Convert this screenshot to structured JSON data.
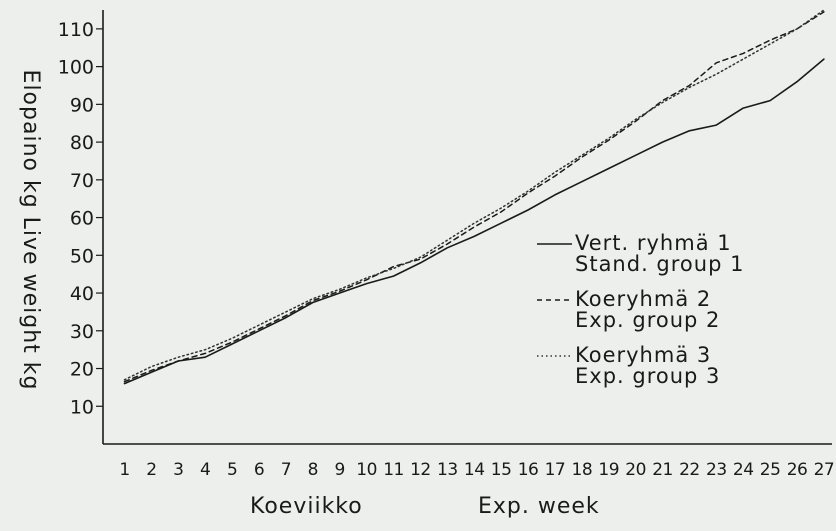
{
  "chart_data": {
    "type": "line",
    "title": "",
    "ylabel": "Elopaino kg  Live weight kg",
    "xlabel_left": "Koeviikko",
    "xlabel_right": "Exp. week",
    "x": [
      1,
      2,
      3,
      4,
      5,
      6,
      7,
      8,
      9,
      10,
      11,
      12,
      13,
      14,
      15,
      16,
      17,
      18,
      19,
      20,
      21,
      22,
      23,
      24,
      25,
      26,
      27
    ],
    "x_tick_labels": [
      "1",
      "2",
      "3",
      "4",
      "5",
      "6",
      "7",
      "8",
      "9",
      "10",
      "11",
      "12",
      "13",
      "14",
      "15",
      "16",
      "17",
      "18",
      "19",
      "20",
      "21",
      "22",
      "23",
      "24",
      "25",
      "26",
      "27"
    ],
    "y_ticks": [
      10,
      20,
      30,
      40,
      50,
      60,
      70,
      80,
      90,
      100,
      110
    ],
    "ylim": [
      0,
      115
    ],
    "xlim": [
      0.2,
      27.3
    ],
    "grid": false,
    "legend_position": "center-right",
    "series": [
      {
        "legend_lines": [
          "Vert. ryhmä  1",
          "Stand. group 1"
        ],
        "style": "solid",
        "values": [
          16,
          19,
          22,
          23,
          26.5,
          30,
          33.5,
          37.5,
          40,
          42.5,
          44.5,
          48,
          52,
          55,
          58.5,
          62,
          66,
          69.5,
          73,
          76.5,
          80,
          83,
          84.5,
          89,
          91,
          96,
          102
        ]
      },
      {
        "legend_lines": [
          "Koeryhmä  2",
          "Exp. group 2"
        ],
        "style": "dashed",
        "values": [
          16.5,
          19.5,
          22,
          24,
          27,
          30.5,
          34,
          38,
          40.5,
          43.5,
          47,
          49,
          53,
          57.5,
          61.5,
          66.5,
          71,
          76,
          80.5,
          85.5,
          91,
          95,
          101,
          103.5,
          107,
          110,
          114.5
        ]
      },
      {
        "legend_lines": [
          "Koeryhmä  3",
          "Exp. group 3"
        ],
        "style": "dotted",
        "values": [
          17,
          20.5,
          23,
          25,
          28,
          31.5,
          35,
          38.5,
          41,
          44,
          46.5,
          49.5,
          54,
          58.5,
          62.5,
          67,
          72,
          76.5,
          81,
          86,
          90.5,
          94.5,
          98,
          102,
          106,
          110,
          115
        ]
      }
    ]
  }
}
